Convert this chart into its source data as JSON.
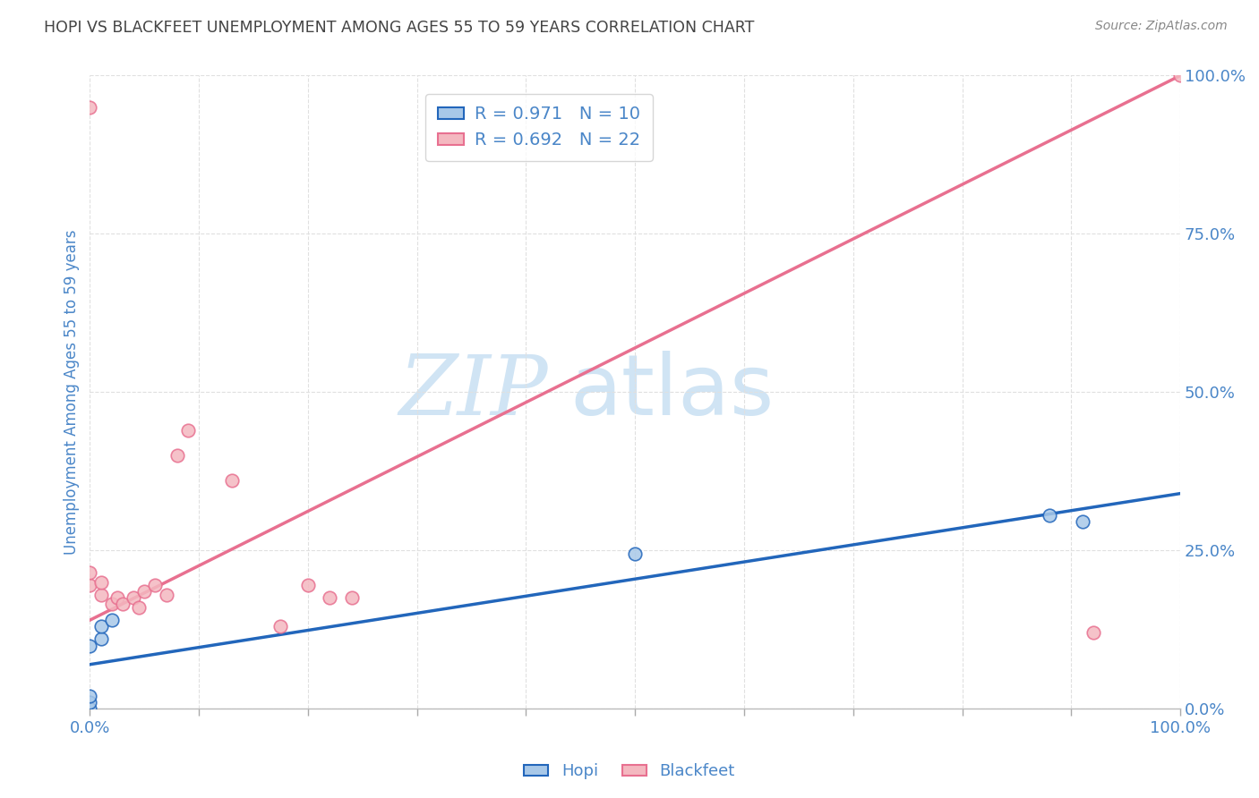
{
  "title": "HOPI VS BLACKFEET UNEMPLOYMENT AMONG AGES 55 TO 59 YEARS CORRELATION CHART",
  "source": "Source: ZipAtlas.com",
  "ylabel": "Unemployment Among Ages 55 to 59 years",
  "xlim": [
    0.0,
    1.0
  ],
  "ylim": [
    0.0,
    1.0
  ],
  "ytick_positions": [
    0.0,
    0.25,
    0.5,
    0.75,
    1.0
  ],
  "ytick_labels": [
    "0.0%",
    "25.0%",
    "50.0%",
    "75.0%",
    "100.0%"
  ],
  "xtick_positions": [
    0.0,
    1.0
  ],
  "xtick_labels": [
    "0.0%",
    "100.0%"
  ],
  "hopi_color": "#a8c8e8",
  "blackfeet_color": "#f4b8c0",
  "hopi_line_color": "#2266bb",
  "blackfeet_line_color": "#e87090",
  "hopi_R": "0.971",
  "hopi_N": "10",
  "blackfeet_R": "0.692",
  "blackfeet_N": "22",
  "watermark_zip": "ZIP",
  "watermark_atlas": "atlas",
  "hopi_points_x": [
    0.0,
    0.0,
    0.0,
    0.0,
    0.01,
    0.01,
    0.02,
    0.5,
    0.88,
    0.91
  ],
  "hopi_points_y": [
    0.0,
    0.01,
    0.02,
    0.1,
    0.11,
    0.13,
    0.14,
    0.245,
    0.305,
    0.295
  ],
  "blackfeet_points_x": [
    0.0,
    0.0,
    0.0,
    0.01,
    0.01,
    0.02,
    0.025,
    0.03,
    0.04,
    0.045,
    0.05,
    0.06,
    0.07,
    0.08,
    0.09,
    0.13,
    0.175,
    0.2,
    0.22,
    0.24,
    0.92,
    1.0
  ],
  "blackfeet_points_y": [
    0.95,
    0.195,
    0.215,
    0.18,
    0.2,
    0.165,
    0.175,
    0.165,
    0.175,
    0.16,
    0.185,
    0.195,
    0.18,
    0.4,
    0.44,
    0.36,
    0.13,
    0.195,
    0.175,
    0.175,
    0.12,
    1.0
  ],
  "hopi_trendline": [
    0.0,
    1.0,
    0.07,
    0.34
  ],
  "blackfeet_trendline": [
    0.0,
    1.0,
    0.14,
    1.0
  ],
  "marker_size": 110,
  "background_color": "#ffffff",
  "axis_color": "#4a86c8",
  "title_color": "#444444",
  "source_color": "#888888",
  "legend_facecolor": "#ffffff",
  "legend_edgecolor": "#cccccc",
  "grid_color": "#e0e0e0",
  "watermark_color": "#d0e4f4"
}
